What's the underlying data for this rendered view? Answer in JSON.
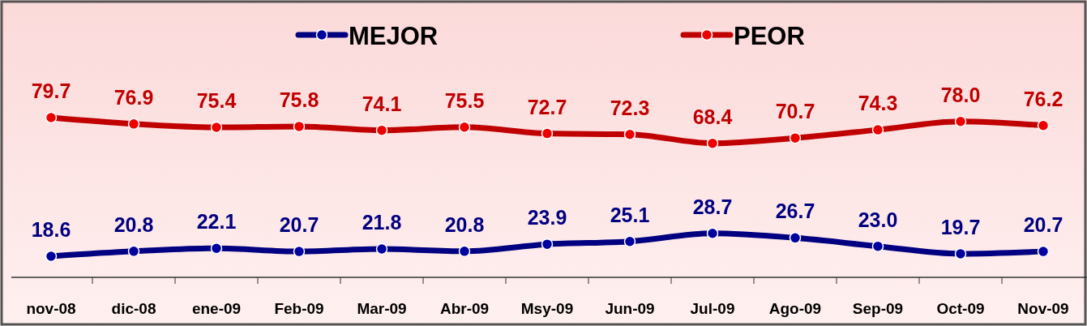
{
  "chart_data": {
    "type": "line",
    "categories": [
      "nov-08",
      "dic-08",
      "ene-09",
      "Feb-09",
      "Mar-09",
      "Abr-09",
      "Msy-09",
      "Jun-09",
      "Jul-09",
      "Ago-09",
      "Sep-09",
      "Oct-09",
      "Nov-09"
    ],
    "series": [
      {
        "name": "MEJOR",
        "color": "#000080",
        "values": [
          18.6,
          20.8,
          22.1,
          20.7,
          21.8,
          20.8,
          23.9,
          25.1,
          28.7,
          26.7,
          23.0,
          19.7,
          20.7
        ],
        "value_labels": [
          "18.6",
          "20.8",
          "22.1",
          "20.7",
          "21.8",
          "20.8",
          "23.9",
          "25.1",
          "28.7",
          "26.7",
          "23.0",
          "19.7",
          "20.7"
        ]
      },
      {
        "name": "PEOR",
        "color": "#c00000",
        "values": [
          79.7,
          76.9,
          75.4,
          75.8,
          74.1,
          75.5,
          72.7,
          72.3,
          68.4,
          70.7,
          74.3,
          78.0,
          76.2
        ],
        "value_labels": [
          "79.7",
          "76.9",
          "75.4",
          "75.8",
          "74.1",
          "75.5",
          "72.7",
          "72.3",
          "68.4",
          "70.7",
          "74.3",
          "78.0",
          "76.2"
        ]
      }
    ],
    "legend": "top",
    "marker": "circle",
    "line_style": "solid"
  }
}
